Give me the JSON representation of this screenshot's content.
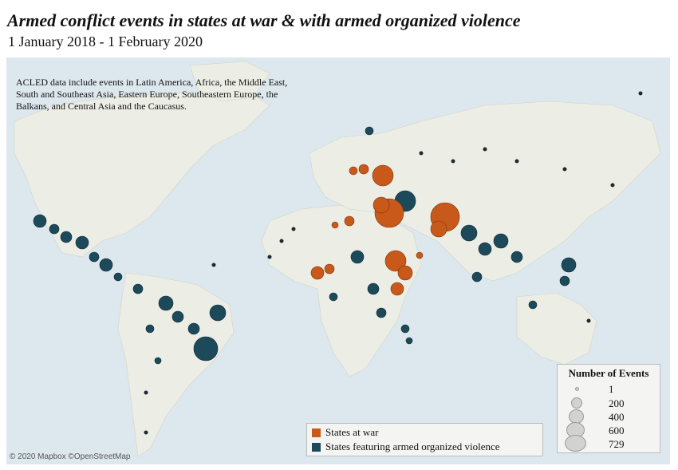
{
  "header": {
    "title": "Armed conflict events in states at war & with armed organized violence",
    "subtitle": "1 January 2018 - 1 February 2020"
  },
  "map": {
    "note": "ACLED data include events in Latin America, Africa, the Middle East, South and Southeast Asia, Eastern Europe, Southeastern Europe, the Balkans, and Central Asia and the Caucasus.",
    "attribution": "© 2020 Mapbox ©OpenStreetMap"
  },
  "legend_size": {
    "title": "Number of Events",
    "items": [
      "1",
      "200",
      "400",
      "600",
      "729"
    ]
  },
  "legend_color": {
    "items": [
      {
        "label": "States at war",
        "color": "#c8591a"
      },
      {
        "label": "States featuring armed organized violence",
        "color": "#1c4a5a"
      }
    ]
  },
  "colors": {
    "war": "#c8591a",
    "violence": "#1c4a5a",
    "land": "#eceee6",
    "ocean": "#dde7ee"
  }
}
